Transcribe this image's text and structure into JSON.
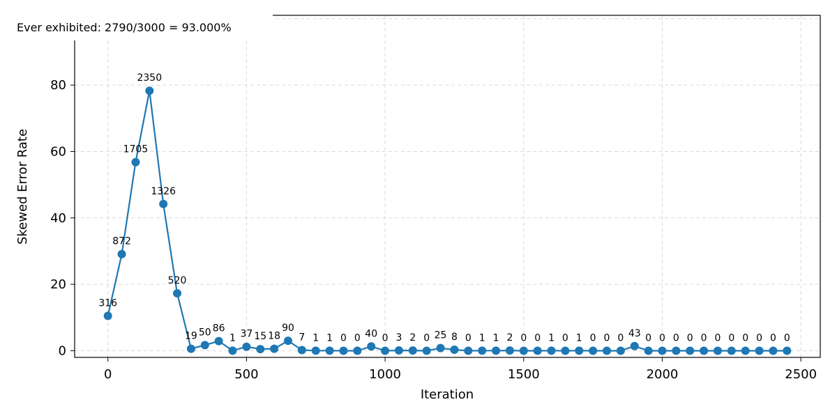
{
  "chart_data": {
    "type": "line",
    "title": "",
    "xlabel": "Iteration",
    "ylabel": "Skewed Error Rate",
    "xlim": [
      -120,
      2570
    ],
    "ylim": [
      -2,
      101
    ],
    "xticks": [
      0,
      500,
      1000,
      1500,
      2000,
      2500
    ],
    "yticks": [
      0,
      20,
      40,
      60,
      80,
      100
    ],
    "grid": true,
    "annotation": "Ever exhibited: 2790/3000 = 93.000%",
    "colors": {
      "series": "#1f77b4",
      "grid": "#d9d9d9"
    },
    "x": [
      0,
      50,
      100,
      150,
      200,
      250,
      300,
      350,
      400,
      450,
      500,
      550,
      600,
      650,
      700,
      750,
      800,
      850,
      900,
      950,
      1000,
      1050,
      1100,
      1150,
      1200,
      1250,
      1300,
      1350,
      1400,
      1450,
      1500,
      1550,
      1600,
      1650,
      1700,
      1750,
      1800,
      1850,
      1900,
      1950,
      2000,
      2050,
      2100,
      2150,
      2200,
      2250,
      2300,
      2350,
      2400,
      2450
    ],
    "series": [
      {
        "values": [
          10.5,
          29.1,
          56.8,
          78.3,
          44.2,
          17.3,
          0.6,
          1.7,
          2.9,
          0.03,
          1.2,
          0.5,
          0.6,
          3.0,
          0.2,
          0.03,
          0.03,
          0,
          0,
          1.3,
          0,
          0.1,
          0.07,
          0,
          0.8,
          0.3,
          0,
          0.03,
          0.03,
          0.07,
          0,
          0,
          0.03,
          0,
          0.03,
          0,
          0,
          0,
          1.4,
          0,
          0,
          0,
          0,
          0,
          0,
          0,
          0,
          0,
          0,
          0
        ],
        "labels": [
          "316",
          "872",
          "1705",
          "2350",
          "1326",
          "520",
          "19",
          "50",
          "86",
          "1",
          "37",
          "15",
          "18",
          "90",
          "7",
          "1",
          "1",
          "0",
          "0",
          "40",
          "0",
          "3",
          "2",
          "0",
          "25",
          "8",
          "0",
          "1",
          "1",
          "2",
          "0",
          "0",
          "1",
          "0",
          "1",
          "0",
          "0",
          "0",
          "43",
          "0",
          "0",
          "0",
          "0",
          "0",
          "0",
          "0",
          "0",
          "0",
          "0",
          "0"
        ]
      }
    ]
  }
}
